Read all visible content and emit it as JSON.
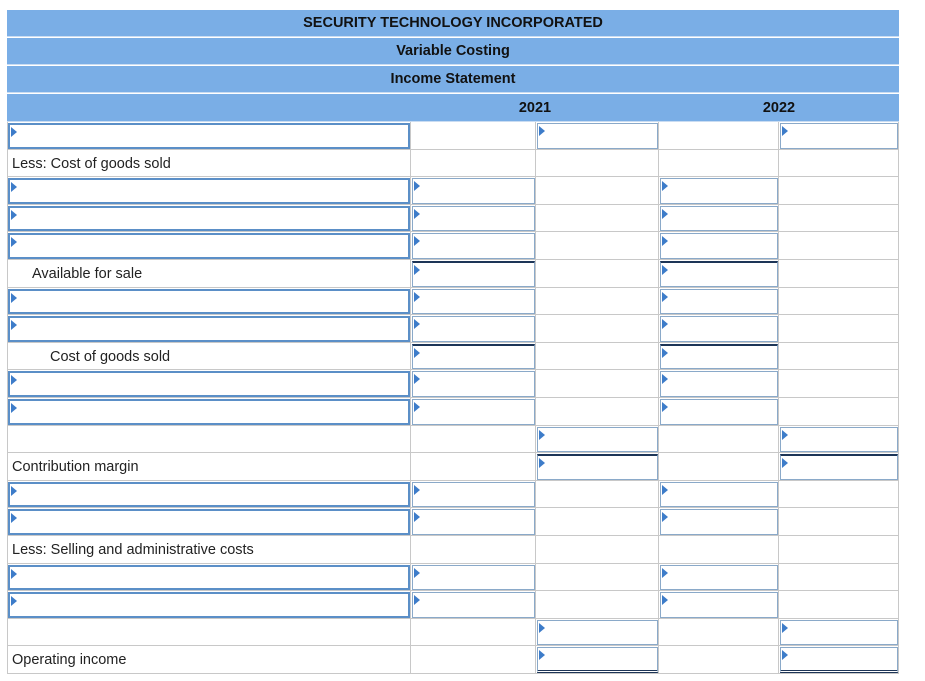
{
  "header": {
    "company": "SECURITY TECHNOLOGY INCORPORATED",
    "report": "Variable Costing",
    "statement": "Income Statement",
    "years": [
      "2021",
      "2022"
    ]
  },
  "rows": [
    "Less: Cost of goods sold",
    "Available for sale",
    "Cost of goods sold",
    "Contribution margin",
    "Less: Selling and administrative costs",
    "Operating income"
  ]
}
